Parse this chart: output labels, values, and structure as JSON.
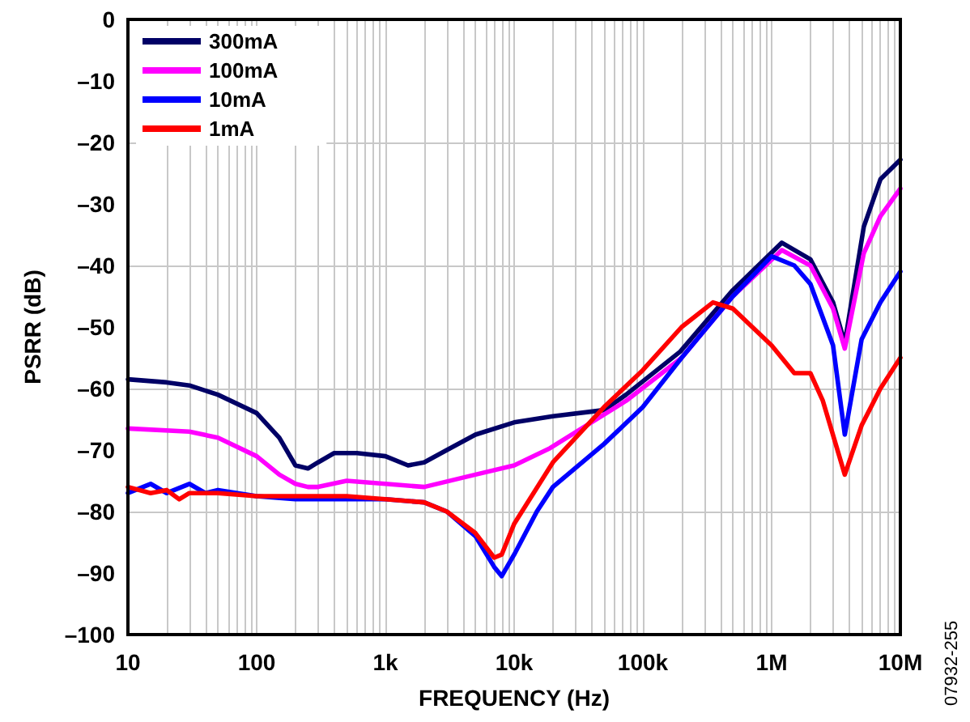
{
  "chart_data": {
    "type": "line",
    "xlabel": "FREQUENCY (Hz)",
    "ylabel": "PSRR (dB)",
    "log": "x",
    "grid": true,
    "legend": "top left",
    "marker": "none",
    "line_style": "solid",
    "xlim": [
      10,
      10000000
    ],
    "xticks": [
      {
        "value": 10,
        "label": "10"
      },
      {
        "value": 100,
        "label": "100"
      },
      {
        "value": 1000,
        "label": "1k"
      },
      {
        "value": 10000,
        "label": "10k"
      },
      {
        "value": 100000,
        "label": "100k"
      },
      {
        "value": 1000000,
        "label": "1M"
      },
      {
        "value": 10000000,
        "label": "10M"
      }
    ],
    "ylim": [
      -100,
      0
    ],
    "yticks": [
      {
        "value": 0,
        "label": "0"
      },
      {
        "value": -10,
        "label": "–10"
      },
      {
        "value": -20,
        "label": "–20"
      },
      {
        "value": -30,
        "label": "–30"
      },
      {
        "value": -40,
        "label": "–40"
      },
      {
        "value": -50,
        "label": "–50"
      },
      {
        "value": -60,
        "label": "–60"
      },
      {
        "value": -70,
        "label": "–70"
      },
      {
        "value": -80,
        "label": "–80"
      },
      {
        "value": -90,
        "label": "–90"
      },
      {
        "value": -100,
        "label": "–100"
      }
    ],
    "annotations": [
      "07932-255"
    ],
    "series": [
      {
        "name": "300mA",
        "color": "#000066",
        "x": [
          10,
          20,
          30,
          50,
          100,
          150,
          200,
          250,
          300,
          400,
          600,
          1000,
          1500,
          2000,
          3000,
          5000,
          10000,
          20000,
          50000,
          74000,
          195000,
          500000,
          1200000,
          2000000,
          3000000,
          3700000,
          5200000,
          7000000,
          10000000
        ],
        "values": [
          -58.5,
          -59,
          -59.5,
          -61,
          -64,
          -68,
          -72.5,
          -73,
          -72,
          -70.5,
          -70.5,
          -71,
          -72.5,
          -72,
          -70,
          -67.5,
          -65.5,
          -64.5,
          -63.5,
          -61,
          -54,
          -44,
          -36.3,
          -39,
          -46,
          -52.6,
          -33.7,
          -26,
          -22.8
        ]
      },
      {
        "name": "100mA",
        "color": "#ff00ff",
        "x": [
          10,
          30,
          50,
          100,
          150,
          200,
          250,
          300,
          500,
          1000,
          2000,
          5000,
          10000,
          19000,
          74000,
          200000,
          500000,
          1200000,
          2000000,
          3000000,
          3700000,
          5200000,
          7000000,
          10000000
        ],
        "values": [
          -66.5,
          -67,
          -68,
          -71,
          -74,
          -75.5,
          -76,
          -76,
          -75,
          -75.5,
          -76,
          -74,
          -72.5,
          -69.7,
          -62,
          -55,
          -45,
          -37.5,
          -40,
          -47,
          -53.5,
          -38,
          -32,
          -27.5
        ]
      },
      {
        "name": "10mA",
        "color": "#0000ff",
        "x": [
          10,
          15,
          20,
          30,
          40,
          50,
          100,
          200,
          500,
          1000,
          2000,
          3000,
          5000,
          7000,
          8000,
          10000,
          15000,
          20000,
          50000,
          100000,
          200000,
          500000,
          1000000,
          1500000,
          2000000,
          3000000,
          3700000,
          5000000,
          7000000,
          10000000
        ],
        "values": [
          -77,
          -75.5,
          -77,
          -75.5,
          -77,
          -76.5,
          -77.5,
          -78,
          -78,
          -78,
          -78.5,
          -80,
          -84,
          -89,
          -90.5,
          -87,
          -80,
          -76,
          -69,
          -63,
          -55,
          -45,
          -38.5,
          -40,
          -43,
          -53,
          -67.5,
          -52,
          -46,
          -41
        ]
      },
      {
        "name": "1mA",
        "color": "#ff0000",
        "x": [
          10,
          15,
          20,
          25,
          30,
          50,
          100,
          200,
          500,
          1000,
          2000,
          3000,
          5000,
          7000,
          8000,
          10000,
          20000,
          50000,
          100000,
          200000,
          350000,
          500000,
          1000000,
          1500000,
          2000000,
          2500000,
          3700000,
          5000000,
          7000000,
          10000000
        ],
        "values": [
          -76,
          -77,
          -76.5,
          -78,
          -77,
          -77,
          -77.5,
          -77.5,
          -77.5,
          -78,
          -78.5,
          -80,
          -83.5,
          -87.5,
          -87,
          -82,
          -72,
          -63,
          -57,
          -50,
          -46,
          -47,
          -53,
          -57.5,
          -57.5,
          -62,
          -74,
          -66,
          -60,
          -55
        ]
      }
    ]
  }
}
